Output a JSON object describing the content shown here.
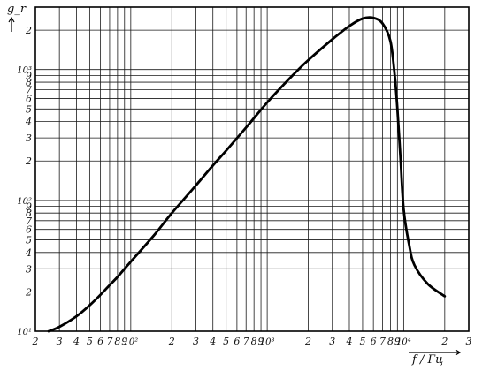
{
  "chart_data": {
    "type": "line",
    "xscale": "log",
    "yscale": "log",
    "xlim": [
      20,
      30000
    ],
    "ylim": [
      10,
      3000
    ],
    "grid": true,
    "xlabel": "f / Гц",
    "ylabel": "g_r",
    "x_tick_labels": [
      {
        "v": 20,
        "t": "2"
      },
      {
        "v": 30,
        "t": "3"
      },
      {
        "v": 40,
        "t": "4"
      },
      {
        "v": 50,
        "t": "5"
      },
      {
        "v": 60,
        "t": "6"
      },
      {
        "v": 70,
        "t": "7"
      },
      {
        "v": 80,
        "t": "8"
      },
      {
        "v": 90,
        "t": "9"
      },
      {
        "v": 100,
        "t": "10²"
      },
      {
        "v": 200,
        "t": "2"
      },
      {
        "v": 300,
        "t": "3"
      },
      {
        "v": 400,
        "t": "4"
      },
      {
        "v": 500,
        "t": "5"
      },
      {
        "v": 600,
        "t": "6"
      },
      {
        "v": 700,
        "t": "7"
      },
      {
        "v": 800,
        "t": "8"
      },
      {
        "v": 900,
        "t": "9"
      },
      {
        "v": 1000,
        "t": "10³"
      },
      {
        "v": 2000,
        "t": "2"
      },
      {
        "v": 3000,
        "t": "3"
      },
      {
        "v": 4000,
        "t": "4"
      },
      {
        "v": 5000,
        "t": "5"
      },
      {
        "v": 6000,
        "t": "6"
      },
      {
        "v": 7000,
        "t": "7"
      },
      {
        "v": 8000,
        "t": "8"
      },
      {
        "v": 9000,
        "t": "9"
      },
      {
        "v": 10000,
        "t": "10⁴"
      },
      {
        "v": 20000,
        "t": "2"
      },
      {
        "v": 30000,
        "t": "3"
      }
    ],
    "y_tick_labels": [
      {
        "v": 10,
        "t": "10¹"
      },
      {
        "v": 20,
        "t": "2"
      },
      {
        "v": 30,
        "t": "3"
      },
      {
        "v": 40,
        "t": "4"
      },
      {
        "v": 50,
        "t": "5"
      },
      {
        "v": 60,
        "t": "6"
      },
      {
        "v": 70,
        "t": "7"
      },
      {
        "v": 80,
        "t": "8"
      },
      {
        "v": 90,
        "t": "9"
      },
      {
        "v": 100,
        "t": "10²"
      },
      {
        "v": 200,
        "t": "2"
      },
      {
        "v": 300,
        "t": "3"
      },
      {
        "v": 400,
        "t": "4"
      },
      {
        "v": 500,
        "t": "5"
      },
      {
        "v": 600,
        "t": "6"
      },
      {
        "v": 700,
        "t": "7"
      },
      {
        "v": 800,
        "t": "8"
      },
      {
        "v": 900,
        "t": "9"
      },
      {
        "v": 1000,
        "t": "10³"
      },
      {
        "v": 2000,
        "t": "2"
      }
    ],
    "series": [
      {
        "points": [
          [
            25,
            10
          ],
          [
            30,
            10.8
          ],
          [
            40,
            13
          ],
          [
            50,
            15.8
          ],
          [
            60,
            19
          ],
          [
            70,
            22.5
          ],
          [
            80,
            26
          ],
          [
            90,
            30
          ],
          [
            100,
            34
          ],
          [
            150,
            55
          ],
          [
            200,
            80
          ],
          [
            300,
            130
          ],
          [
            400,
            185
          ],
          [
            500,
            240
          ],
          [
            700,
            360
          ],
          [
            1000,
            560
          ],
          [
            1500,
            880
          ],
          [
            2000,
            1180
          ],
          [
            3000,
            1700
          ],
          [
            4000,
            2150
          ],
          [
            5000,
            2450
          ],
          [
            6000,
            2480
          ],
          [
            7000,
            2250
          ],
          [
            8000,
            1650
          ],
          [
            8600,
            900
          ],
          [
            9000,
            500
          ],
          [
            9500,
            200
          ],
          [
            10000,
            85
          ],
          [
            11000,
            45
          ],
          [
            12000,
            32
          ],
          [
            15000,
            23
          ],
          [
            20000,
            18.5
          ]
        ]
      }
    ]
  }
}
